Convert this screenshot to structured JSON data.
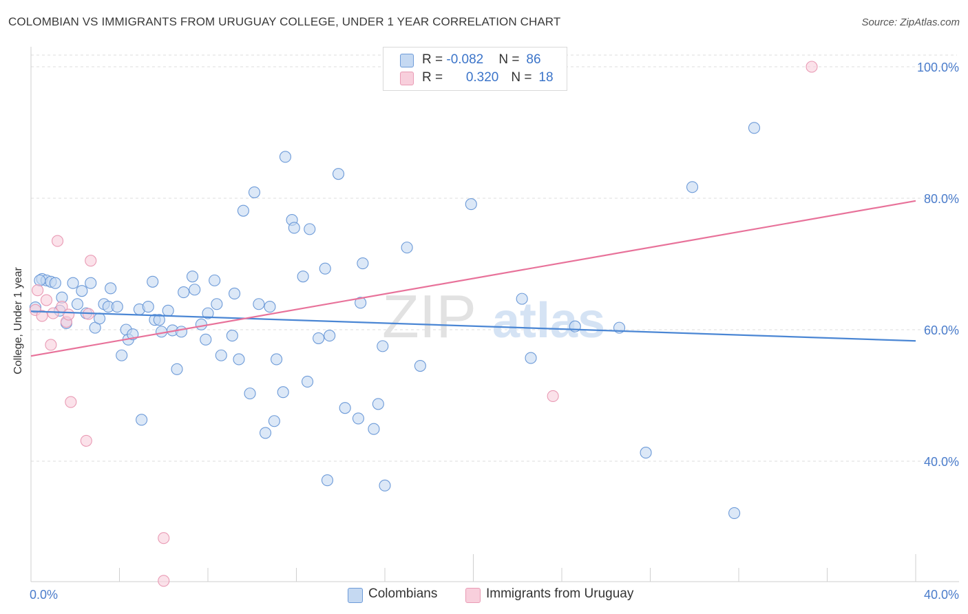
{
  "title": "COLOMBIAN VS IMMIGRANTS FROM URUGUAY COLLEGE, UNDER 1 YEAR CORRELATION CHART",
  "source": "Source: ZipAtlas.com",
  "watermark": {
    "zip": "ZIP",
    "atlas": "atlas"
  },
  "legend_top": {
    "rows": [
      {
        "r_label": "R = ",
        "r_value": "-0.082",
        "n_label": "N = ",
        "n_value": "86",
        "color": "#9dbde8"
      },
      {
        "r_label": "R = ",
        "r_value": "0.320",
        "n_label": "N = ",
        "n_value": "18",
        "color": "#f4b6c8"
      }
    ]
  },
  "legend_bottom": [
    {
      "label": "Colombians",
      "color": "#9dbde8"
    },
    {
      "label": "Immigrants from Uruguay",
      "color": "#f4b6c8"
    }
  ],
  "chart_data": {
    "type": "scatter",
    "title": "COLOMBIAN VS IMMIGRANTS FROM URUGUAY COLLEGE, UNDER 1 YEAR CORRELATION CHART",
    "xlabel": "",
    "ylabel": "College, Under 1 year",
    "xlim": [
      0,
      40
    ],
    "ylim": [
      20,
      102
    ],
    "x_tick_labels": [
      "0.0%",
      "40.0%"
    ],
    "y_ticks": [
      40,
      60,
      80,
      100
    ],
    "y_tick_labels": [
      "40.0%",
      "60.0%",
      "80.0%",
      "100.0%"
    ],
    "grid": "horizontal dashed",
    "legend_position": "top-center",
    "colors": {
      "Colombians": "#4a86d4",
      "Immigrants from Uruguay": "#e8729a"
    },
    "series": [
      {
        "name": "Colombians",
        "marker_fill": "#c5d9f2",
        "marker_stroke": "#6c9ad8",
        "trend": {
          "x": [
            0,
            40
          ],
          "y": [
            62.8,
            58.3
          ]
        },
        "points": [
          [
            0.2,
            63.4
          ],
          [
            0.5,
            67.7
          ],
          [
            0.7,
            67.5
          ],
          [
            0.9,
            67.3
          ],
          [
            1.1,
            67.1
          ],
          [
            1.3,
            62.9
          ],
          [
            1.4,
            64.9
          ],
          [
            1.6,
            61.0
          ],
          [
            1.9,
            67.1
          ],
          [
            2.1,
            63.9
          ],
          [
            2.3,
            65.9
          ],
          [
            2.5,
            62.5
          ],
          [
            2.7,
            67.1
          ],
          [
            2.9,
            60.3
          ],
          [
            3.1,
            61.7
          ],
          [
            3.3,
            63.9
          ],
          [
            3.5,
            63.5
          ],
          [
            3.6,
            66.3
          ],
          [
            3.9,
            63.5
          ],
          [
            4.1,
            56.1
          ],
          [
            4.3,
            60.0
          ],
          [
            4.4,
            58.5
          ],
          [
            4.6,
            59.3
          ],
          [
            4.9,
            63.1
          ],
          [
            5.0,
            46.3
          ],
          [
            5.3,
            63.5
          ],
          [
            5.5,
            67.3
          ],
          [
            5.6,
            61.5
          ],
          [
            5.8,
            61.5
          ],
          [
            5.9,
            59.7
          ],
          [
            6.2,
            62.9
          ],
          [
            6.4,
            59.9
          ],
          [
            6.6,
            54.0
          ],
          [
            6.8,
            59.7
          ],
          [
            6.9,
            65.7
          ],
          [
            7.3,
            68.1
          ],
          [
            7.4,
            66.1
          ],
          [
            7.7,
            60.8
          ],
          [
            7.9,
            58.5
          ],
          [
            8.0,
            62.5
          ],
          [
            8.3,
            67.5
          ],
          [
            8.4,
            63.9
          ],
          [
            8.6,
            56.1
          ],
          [
            9.1,
            59.1
          ],
          [
            9.2,
            65.5
          ],
          [
            9.4,
            55.5
          ],
          [
            9.6,
            78.1
          ],
          [
            9.9,
            50.3
          ],
          [
            10.1,
            80.9
          ],
          [
            10.3,
            63.9
          ],
          [
            10.6,
            44.3
          ],
          [
            10.8,
            63.5
          ],
          [
            11.0,
            46.1
          ],
          [
            11.1,
            55.5
          ],
          [
            11.4,
            50.5
          ],
          [
            11.5,
            86.3
          ],
          [
            11.8,
            76.7
          ],
          [
            11.9,
            75.5
          ],
          [
            12.3,
            68.1
          ],
          [
            12.5,
            52.1
          ],
          [
            12.6,
            75.3
          ],
          [
            13.0,
            58.7
          ],
          [
            13.3,
            69.3
          ],
          [
            13.4,
            37.1
          ],
          [
            13.5,
            59.1
          ],
          [
            13.9,
            83.7
          ],
          [
            14.2,
            48.1
          ],
          [
            14.8,
            46.5
          ],
          [
            14.9,
            64.1
          ],
          [
            15.0,
            70.1
          ],
          [
            15.5,
            44.9
          ],
          [
            15.7,
            48.7
          ],
          [
            15.9,
            57.5
          ],
          [
            16.0,
            36.3
          ],
          [
            17.0,
            72.5
          ],
          [
            17.6,
            54.5
          ],
          [
            19.9,
            79.1
          ],
          [
            22.2,
            64.7
          ],
          [
            22.6,
            55.7
          ],
          [
            24.6,
            60.5
          ],
          [
            26.6,
            60.3
          ],
          [
            27.8,
            41.3
          ],
          [
            29.9,
            81.7
          ],
          [
            31.8,
            32.1
          ],
          [
            32.7,
            90.7
          ],
          [
            0.4,
            67.5
          ]
        ]
      },
      {
        "name": "Immigrants from Uruguay",
        "marker_fill": "#f8cfdc",
        "marker_stroke": "#e99ab4",
        "trend": {
          "x": [
            0,
            40
          ],
          "y": [
            56.0,
            79.6
          ]
        },
        "points": [
          [
            0.2,
            63.0
          ],
          [
            0.3,
            66.0
          ],
          [
            0.5,
            62.1
          ],
          [
            0.7,
            64.5
          ],
          [
            0.9,
            57.7
          ],
          [
            1.0,
            62.5
          ],
          [
            1.2,
            73.5
          ],
          [
            1.4,
            63.5
          ],
          [
            1.6,
            61.2
          ],
          [
            1.7,
            62.3
          ],
          [
            1.8,
            49.0
          ],
          [
            2.5,
            43.1
          ],
          [
            2.6,
            62.4
          ],
          [
            2.7,
            70.5
          ],
          [
            6.0,
            28.3
          ],
          [
            6.0,
            21.8
          ],
          [
            23.6,
            49.9
          ],
          [
            35.3,
            100.0
          ]
        ]
      }
    ]
  }
}
